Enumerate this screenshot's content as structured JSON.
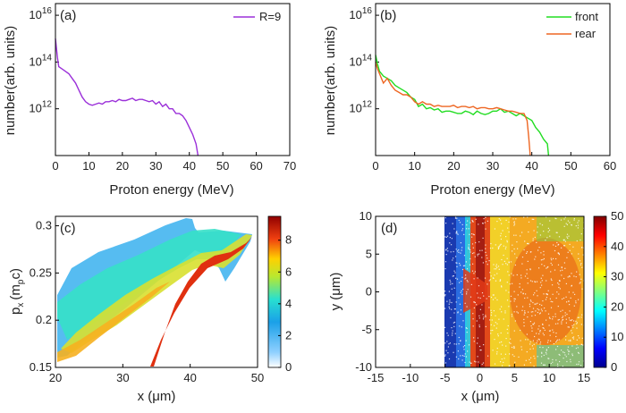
{
  "chart_data": [
    {
      "panel": "(a)",
      "type": "line",
      "xlabel": "Proton energy (MeV)",
      "ylabel": "number(arb. units)",
      "xlim": [
        0,
        70
      ],
      "xticks": [
        "0",
        "10",
        "20",
        "30",
        "40",
        "50",
        "60",
        "70"
      ],
      "yscale": "log",
      "ylim_exp": [
        10,
        16.5
      ],
      "yticks_exp": [
        12,
        14,
        16
      ],
      "legend": "top-right",
      "series": [
        {
          "name": "R=9",
          "color": "#9b30d9",
          "x": [
            0,
            0.3,
            0.6,
            1,
            2,
            3,
            4,
            5,
            6,
            7,
            8,
            9,
            10,
            11,
            12,
            13,
            14,
            15,
            16,
            17,
            18,
            19,
            20,
            21,
            22,
            23,
            24,
            25,
            26,
            27,
            28,
            29,
            30,
            31,
            32,
            33,
            34,
            35,
            36,
            37,
            38,
            39,
            40,
            41,
            42,
            42.6
          ],
          "y_exp": [
            15.0,
            14.6,
            14.2,
            13.8,
            13.7,
            13.6,
            13.5,
            13.3,
            13.1,
            12.8,
            12.5,
            12.3,
            12.2,
            12.15,
            12.2,
            12.25,
            12.2,
            12.3,
            12.3,
            12.35,
            12.3,
            12.4,
            12.35,
            12.35,
            12.4,
            12.45,
            12.35,
            12.4,
            12.4,
            12.35,
            12.3,
            12.35,
            12.2,
            12.3,
            12.1,
            12.2,
            12.0,
            12.0,
            11.8,
            11.8,
            11.7,
            11.5,
            11.2,
            10.9,
            10.5,
            10.0
          ]
        }
      ]
    },
    {
      "panel": "(b)",
      "type": "line",
      "xlabel": "Proton energy (MeV)",
      "ylabel": "number(arb. units)",
      "xlim": [
        0,
        60
      ],
      "xticks": [
        "0",
        "10",
        "20",
        "30",
        "40",
        "50",
        "60"
      ],
      "yscale": "log",
      "ylim_exp": [
        10,
        16.5
      ],
      "yticks_exp": [
        12,
        14,
        16
      ],
      "legend": "top-right",
      "series": [
        {
          "name": "front",
          "color": "#22dd22",
          "x": [
            0,
            0.5,
            1,
            2,
            3,
            4,
            5,
            6,
            7,
            8,
            9,
            10,
            11,
            12,
            13,
            14,
            15,
            16,
            17,
            18,
            19,
            20,
            21,
            22,
            23,
            24,
            25,
            26,
            27,
            28,
            29,
            30,
            31,
            32,
            33,
            34,
            35,
            36,
            37,
            38,
            39,
            40,
            41,
            42,
            43,
            44,
            44.3
          ],
          "y_exp": [
            14.3,
            13.9,
            13.6,
            13.4,
            13.3,
            13.2,
            13.0,
            12.9,
            12.8,
            12.7,
            12.5,
            12.4,
            12.1,
            12.2,
            12.0,
            12.05,
            11.95,
            12.0,
            11.85,
            11.9,
            11.9,
            11.85,
            11.8,
            11.8,
            11.9,
            11.85,
            11.75,
            11.9,
            11.8,
            11.75,
            11.8,
            11.9,
            11.9,
            12.0,
            11.85,
            11.9,
            11.8,
            11.7,
            11.8,
            11.7,
            11.6,
            11.5,
            11.2,
            11.0,
            10.7,
            10.5,
            10.0
          ]
        },
        {
          "name": "rear",
          "color": "#ee6622",
          "x": [
            0,
            0.5,
            1,
            2,
            3,
            4,
            5,
            6,
            7,
            8,
            9,
            10,
            11,
            12,
            13,
            14,
            15,
            16,
            17,
            18,
            19,
            20,
            21,
            22,
            23,
            24,
            25,
            26,
            27,
            28,
            29,
            30,
            31,
            32,
            33,
            34,
            35,
            36,
            37,
            38,
            38.8,
            39.2,
            39.6
          ],
          "y_exp": [
            14.0,
            13.7,
            13.5,
            13.1,
            13.3,
            13.0,
            12.8,
            12.7,
            12.6,
            12.6,
            12.5,
            12.3,
            12.2,
            12.3,
            12.2,
            12.2,
            12.1,
            12.15,
            12.1,
            12.1,
            12.1,
            12.15,
            12.05,
            12.1,
            12.1,
            12.05,
            12.1,
            12.0,
            12.05,
            12.05,
            12.0,
            12.0,
            12.05,
            12.0,
            11.95,
            11.9,
            11.9,
            11.85,
            11.8,
            11.8,
            11.5,
            10.8,
            10.0
          ]
        }
      ]
    },
    {
      "panel": "(c)",
      "type": "heatmap",
      "xlabel": "x (μm)",
      "ylabel_main": "p",
      "ylabel_sub": "x",
      "ylabel_paren": "(m",
      "ylabel_paren_sub": "p",
      "ylabel_tail": "c)",
      "xlim": [
        20,
        50
      ],
      "xticks": [
        "20",
        "30",
        "40",
        "50"
      ],
      "ylim": [
        0.15,
        0.31
      ],
      "yticks": [
        "0.15",
        "0.2",
        "0.25",
        "0.3"
      ],
      "colorbar_range": [
        0,
        9.5
      ],
      "colorbar_ticks": [
        "0",
        "2",
        "4",
        "6",
        "8"
      ]
    },
    {
      "panel": "(d)",
      "type": "heatmap",
      "xlabel": "x (μm)",
      "ylabel": "y (μm)",
      "xlim": [
        -15,
        15
      ],
      "xticks": [
        "-15",
        "-10",
        "-5",
        "0",
        "5",
        "10",
        "15"
      ],
      "ylim": [
        -10,
        10
      ],
      "yticks": [
        "-10",
        "-5",
        "0",
        "5",
        "10"
      ],
      "colorbar_range": [
        0,
        50
      ],
      "colorbar_ticks": [
        "0",
        "10",
        "20",
        "30",
        "40",
        "50"
      ]
    }
  ]
}
